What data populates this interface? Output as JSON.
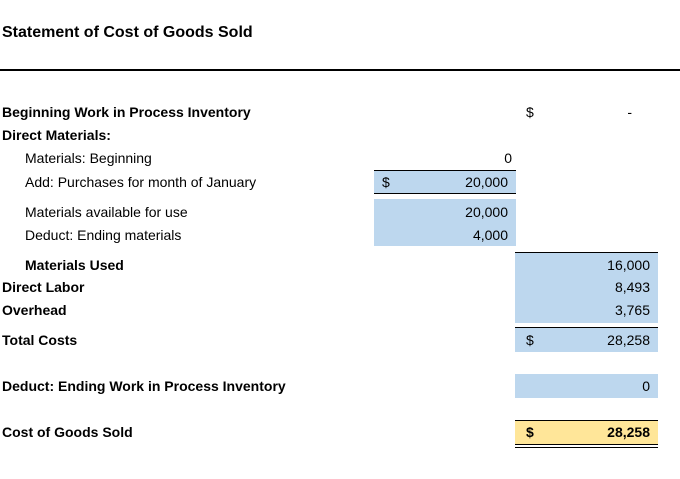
{
  "title": "Statement of Cost of Goods Sold",
  "rows": {
    "beginning_wip": {
      "label": "Beginning Work in Process Inventory",
      "currency": "$",
      "value": "-"
    },
    "direct_materials": {
      "label": "Direct Materials:"
    },
    "materials_beginning": {
      "label": "Materials: Beginning",
      "value": "0"
    },
    "purchases": {
      "label": "Add: Purchases for month of January",
      "currency": "$",
      "value": "20,000"
    },
    "materials_available": {
      "label": "Materials available for use",
      "value": "20,000"
    },
    "ending_materials": {
      "label": "Deduct: Ending materials",
      "value": "4,000"
    },
    "materials_used": {
      "label": "Materials Used",
      "value": "16,000"
    },
    "direct_labor": {
      "label": "Direct Labor",
      "value": "8,493"
    },
    "overhead": {
      "label": "Overhead",
      "value": "3,765"
    },
    "total_costs": {
      "label": "Total Costs",
      "currency": "$",
      "value": "28,258"
    },
    "ending_wip": {
      "label": "Deduct: Ending Work in Process Inventory",
      "value": "0"
    },
    "cogs": {
      "label": "Cost of Goods Sold",
      "currency": "$",
      "value": "28,258"
    }
  },
  "colors": {
    "input_fill": "#bdd7ee",
    "result_fill": "#ffe699"
  }
}
